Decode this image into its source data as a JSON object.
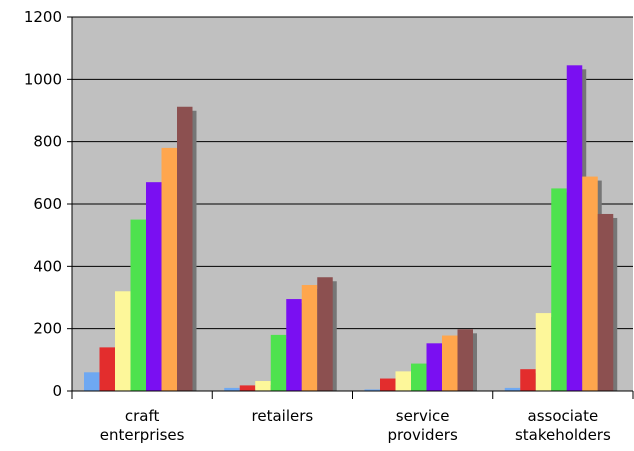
{
  "chart_data": {
    "type": "bar",
    "title": "",
    "xlabel": "",
    "ylabel": "",
    "ylim": [
      0,
      1200
    ],
    "yticks": [
      0,
      200,
      400,
      600,
      800,
      1000,
      1200
    ],
    "grid": "horizontal",
    "legend": "none",
    "categories": [
      [
        "craft",
        "enterprises"
      ],
      [
        "retailers"
      ],
      [
        "service",
        "providers"
      ],
      [
        "associate",
        "stakeholders"
      ]
    ],
    "series": [
      {
        "color": "#6ea8f2",
        "values": [
          60,
          10,
          5,
          10
        ]
      },
      {
        "color": "#e32d2d",
        "values": [
          140,
          18,
          40,
          70
        ]
      },
      {
        "color": "#fdf79a",
        "values": [
          320,
          32,
          63,
          250
        ]
      },
      {
        "color": "#4ee24e",
        "values": [
          550,
          180,
          88,
          650
        ]
      },
      {
        "color": "#7a0ff2",
        "values": [
          670,
          295,
          153,
          1045
        ]
      },
      {
        "color": "#ffa64d",
        "values": [
          780,
          340,
          178,
          688
        ]
      },
      {
        "color": "#8c5050",
        "values": [
          912,
          365,
          198,
          568
        ]
      }
    ],
    "plot_background": "#c0c0c0",
    "shadow_color": "#767676"
  }
}
